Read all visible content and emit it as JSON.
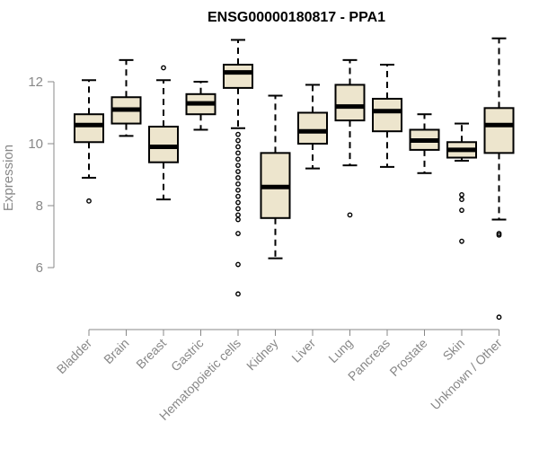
{
  "chart_data": {
    "type": "boxplot",
    "title": "ENSG00000180817 - PPA1",
    "ylabel": "Expression",
    "xlabel": "",
    "ylim": [
      4.2,
      13.8
    ],
    "yticks": [
      6,
      8,
      10,
      12
    ],
    "grid": false,
    "legend": "none",
    "colors": {
      "box_fill": "#ede5cd",
      "stroke": "#000000",
      "axis": "#888888"
    },
    "categories": [
      "Bladder",
      "Brain",
      "Breast",
      "Gastric",
      "Hematopoietic cells",
      "Kidney",
      "Liver",
      "Lung",
      "Pancreas",
      "Prostate",
      "Skin",
      "Unknown / Other"
    ],
    "boxes": [
      {
        "min": 8.9,
        "q1": 10.05,
        "median": 10.6,
        "q3": 10.95,
        "max": 12.05,
        "outliers": [
          8.15
        ]
      },
      {
        "min": 10.25,
        "q1": 10.65,
        "median": 11.1,
        "q3": 11.5,
        "max": 12.7,
        "outliers": []
      },
      {
        "min": 8.2,
        "q1": 9.4,
        "median": 9.9,
        "q3": 10.55,
        "max": 12.05,
        "outliers": [
          12.45
        ]
      },
      {
        "min": 10.45,
        "q1": 10.95,
        "median": 11.3,
        "q3": 11.6,
        "max": 12.0,
        "outliers": []
      },
      {
        "min": 10.5,
        "q1": 11.8,
        "median": 12.3,
        "q3": 12.55,
        "max": 13.35,
        "outliers": [
          10.3,
          10.1,
          9.9,
          9.7,
          9.5,
          9.3,
          9.1,
          8.9,
          8.7,
          8.5,
          8.3,
          8.1,
          7.9,
          7.7,
          7.55,
          7.1,
          6.1,
          5.15
        ]
      },
      {
        "min": 6.3,
        "q1": 7.6,
        "median": 8.6,
        "q3": 9.7,
        "max": 11.55,
        "outliers": []
      },
      {
        "min": 9.2,
        "q1": 10.0,
        "median": 10.4,
        "q3": 11.0,
        "max": 11.9,
        "outliers": []
      },
      {
        "min": 9.3,
        "q1": 10.75,
        "median": 11.2,
        "q3": 11.9,
        "max": 12.7,
        "outliers": [
          7.7
        ]
      },
      {
        "min": 9.25,
        "q1": 10.4,
        "median": 11.05,
        "q3": 11.45,
        "max": 12.55,
        "outliers": []
      },
      {
        "min": 9.05,
        "q1": 9.8,
        "median": 10.1,
        "q3": 10.45,
        "max": 10.95,
        "outliers": []
      },
      {
        "min": 9.45,
        "q1": 9.55,
        "median": 9.8,
        "q3": 10.05,
        "max": 10.65,
        "outliers": [
          8.35,
          8.2,
          7.85,
          6.85
        ]
      },
      {
        "min": 7.55,
        "q1": 9.7,
        "median": 10.6,
        "q3": 11.15,
        "max": 13.4,
        "outliers": [
          7.1,
          7.05,
          4.4
        ]
      }
    ]
  }
}
